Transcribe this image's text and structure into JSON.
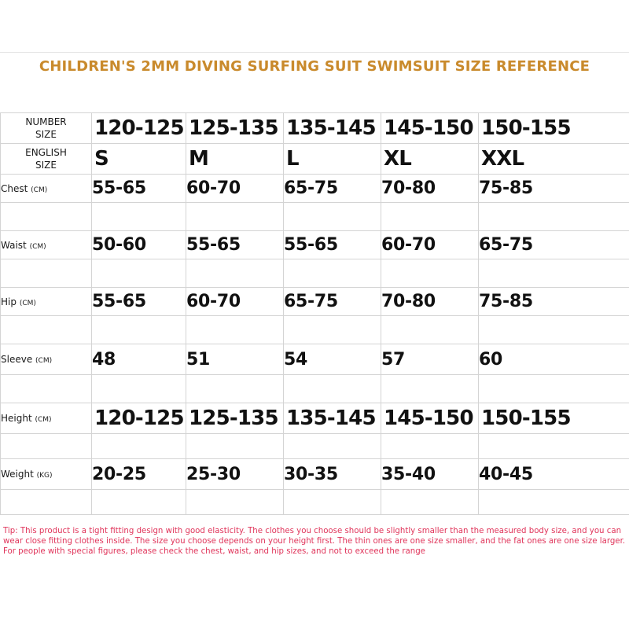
{
  "title": "CHILDREN'S 2MM DIVING SURFING SUIT SWIMSUIT SIZE REFERENCE",
  "header_rows": [
    {
      "label_line1": "NUMBER",
      "label_line2": "SIZE",
      "values": [
        "120-125",
        "125-135",
        "135-145",
        "145-150",
        "150-155"
      ]
    },
    {
      "label_line1": "ENGLISH",
      "label_line2": "SIZE",
      "values": [
        "S",
        "M",
        "L",
        "XL",
        "XXL"
      ]
    }
  ],
  "measure_rows": [
    {
      "label": "Chest",
      "unit": "(CM)",
      "values": [
        "55-65",
        "60-70",
        "65-75",
        "70-80",
        "75-85"
      ]
    },
    {
      "label": "Waist",
      "unit": "(CM)",
      "values": [
        "50-60",
        "55-65",
        "55-65",
        "60-70",
        "65-75"
      ]
    },
    {
      "label": "Hip",
      "unit": "(CM)",
      "values": [
        "55-65",
        "60-70",
        "65-75",
        "70-80",
        "75-85"
      ]
    },
    {
      "label": "Sleeve",
      "unit": "(CM)",
      "values": [
        "48",
        "51",
        "54",
        "57",
        "60"
      ]
    },
    {
      "label": "Height",
      "unit": "(CM)",
      "values": [
        "120-125",
        "125-135",
        "135-145",
        "145-150",
        "150-155"
      ]
    },
    {
      "label": "Weight",
      "unit": "(KG)",
      "values": [
        "20-25",
        "25-30",
        "30-35",
        "35-40",
        "40-45"
      ]
    }
  ],
  "tip": "Tip: This product is a tight fitting design with good elasticity. The clothes you choose should be slightly smaller than the measured body size, and you can wear close fitting clothes inside. The size you choose depends on your height first. The thin ones are one size smaller, and the fat ones are one size larger. For people with special figures, please check the chest, waist, and hip sizes, and not to exceed the range"
}
